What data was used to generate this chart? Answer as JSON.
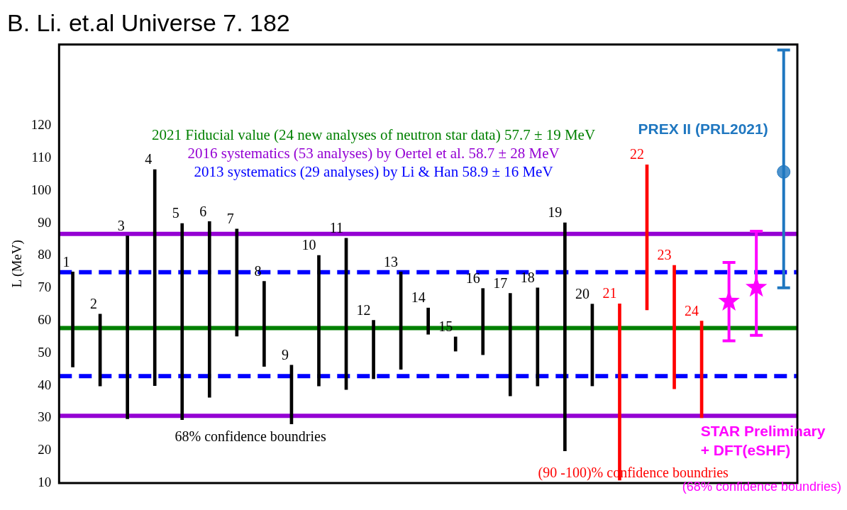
{
  "chart_data": {
    "type": "bar",
    "title": "B. Li. et.al Universe 7. 182",
    "ylabel": "L (MeV)",
    "categories": [
      "1",
      "2",
      "3",
      "4",
      "5",
      "6",
      "7",
      "8",
      "9",
      "10",
      "11",
      "12",
      "13",
      "14",
      "15",
      "16",
      "17",
      "18",
      "19",
      "20",
      "21",
      "22",
      "23",
      "24",
      null,
      null,
      null
    ],
    "series": [
      {
        "type": "bar",
        "colors": [
          "#000000",
          "#000000",
          "#000000",
          "#000000",
          "#000000",
          "#000000",
          "#000000",
          "#000000",
          "#000000",
          "#000000",
          "#000000",
          "#000000",
          "#000000",
          "#000000",
          "#000000",
          "#000000",
          "#000000",
          "#000000",
          "#000000",
          "#000000",
          "#ff0000",
          "#ff0000",
          "#ff0000",
          "#ff0000",
          null,
          null,
          null
        ],
        "base": [
          45.7,
          39.9,
          29.8,
          40.0,
          29.5,
          36.4,
          55.2,
          45.9,
          28.2,
          39.9,
          38.8,
          42.1,
          45.0,
          55.8,
          50.6,
          49.5,
          36.8,
          39.9,
          19.9,
          39.9,
          10.9,
          63.3,
          39.0,
          30.1,
          null,
          null,
          null
        ],
        "values": [
          29.3,
          22.1,
          56.3,
          66.5,
          60.4,
          54.1,
          33.0,
          26.2,
          18.1,
          40.2,
          46.6,
          18.0,
          30.0,
          8.1,
          4.4,
          20.4,
          31.6,
          30.2,
          70.2,
          25.2,
          54.3,
          44.7,
          38.0,
          29.8,
          null,
          null,
          null
        ]
      },
      {
        "type": "scatter",
        "name": "STAR Preliminary + DFT(eSHF)",
        "color": "#ff00ff",
        "marker": "star",
        "values": [
          null,
          null,
          null,
          null,
          null,
          null,
          null,
          null,
          null,
          null,
          null,
          null,
          null,
          null,
          null,
          null,
          null,
          null,
          null,
          null,
          null,
          null,
          null,
          null,
          65.9,
          70.2,
          null
        ],
        "errors": [
          null,
          null,
          null,
          null,
          null,
          null,
          null,
          null,
          null,
          null,
          null,
          null,
          null,
          null,
          null,
          null,
          null,
          null,
          null,
          null,
          null,
          null,
          null,
          null,
          [
            53.8,
            77.9
          ],
          [
            55.5,
            87.5
          ],
          null
        ]
      },
      {
        "type": "scatter",
        "name": "PREX II (PRL2021)",
        "color": "#1f77c0",
        "marker": "circle",
        "values": [
          null,
          null,
          null,
          null,
          null,
          null,
          null,
          null,
          null,
          null,
          null,
          null,
          null,
          null,
          null,
          null,
          null,
          null,
          null,
          null,
          null,
          null,
          null,
          null,
          null,
          null,
          105.8
        ],
        "errors": [
          null,
          null,
          null,
          null,
          null,
          null,
          null,
          null,
          null,
          null,
          null,
          null,
          null,
          null,
          null,
          null,
          null,
          null,
          null,
          null,
          null,
          null,
          null,
          null,
          null,
          null,
          [
            70.1,
            143.3
          ]
        ]
      }
    ],
    "ref_lines": [
      {
        "axis": "y",
        "value": 57.7,
        "label": "2021 Fiducial value (24 new analyses of neutron star data) 57.7 ± 19 MeV",
        "color": "#008000",
        "line_style": "solid"
      },
      {
        "axis": "y",
        "value": 86.7,
        "label": "2016 systematics (53 analyses) by Oertel et al. 58.7 ± 28 MeV",
        "color": "#9400d3",
        "line_style": "solid"
      },
      {
        "axis": "y",
        "value": 30.7,
        "color": "#9400d3",
        "line_style": "solid"
      },
      {
        "axis": "y",
        "value": 74.9,
        "label": "2013 systematics (29 analyses) by Li & Han 58.9 ± 16 MeV",
        "color": "#0000ff",
        "line_style": "dashed"
      },
      {
        "axis": "y",
        "value": 42.9,
        "color": "#0000ff",
        "line_style": "dashed"
      }
    ],
    "annotations": [
      "68% confidence boundries",
      "(90 -100)% confidence boundries",
      "(68% confidence boundries)"
    ],
    "ylim": [
      10,
      145
    ],
    "yticks": [
      10,
      20,
      30,
      40,
      50,
      60,
      70,
      80,
      90,
      100,
      110,
      120
    ],
    "grid": false,
    "legend": false,
    "tick_labels": "y"
  }
}
